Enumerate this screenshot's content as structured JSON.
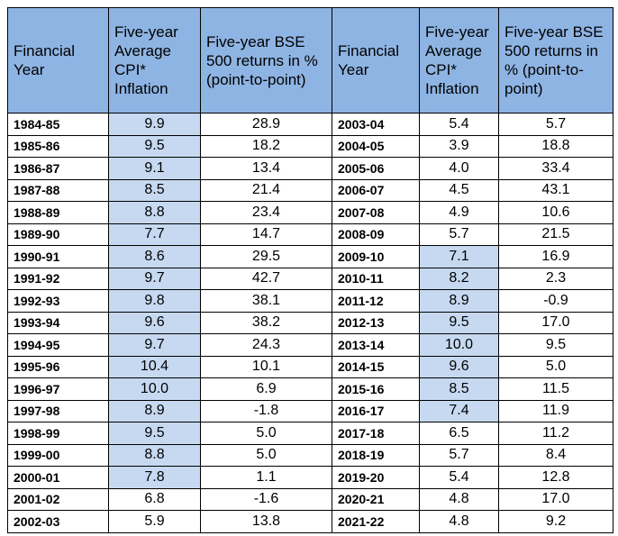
{
  "table": {
    "headers": [
      "Financial Year",
      "Five-year Average CPI* Inflation",
      "Five-year BSE 500 returns in % (point-to-point)",
      "Financial Year",
      "Five-year Average CPI* Inflation",
      "Five-year BSE 500 returns in % (point-to-point)"
    ],
    "header_color": "#8eb4e3",
    "highlight_color": "#c6d9f1",
    "highlighted": [
      [
        0,
        1
      ],
      [
        1,
        1
      ],
      [
        2,
        1
      ],
      [
        3,
        1
      ],
      [
        4,
        1
      ],
      [
        5,
        1
      ],
      [
        6,
        1
      ],
      [
        7,
        1
      ],
      [
        8,
        1
      ],
      [
        9,
        1
      ],
      [
        10,
        1
      ],
      [
        11,
        1
      ],
      [
        12,
        1
      ],
      [
        13,
        1
      ],
      [
        14,
        1
      ],
      [
        15,
        1
      ],
      [
        16,
        1
      ],
      [
        6,
        4
      ],
      [
        7,
        4
      ],
      [
        8,
        4
      ],
      [
        9,
        4
      ],
      [
        10,
        4
      ],
      [
        11,
        4
      ],
      [
        12,
        4
      ],
      [
        13,
        4
      ]
    ],
    "rows": [
      [
        "1984-85",
        "9.9",
        "28.9",
        "2003-04",
        "5.4",
        "5.7"
      ],
      [
        "1985-86",
        "9.5",
        "18.2",
        "2004-05",
        "3.9",
        "18.8"
      ],
      [
        "1986-87",
        "9.1",
        "13.4",
        "2005-06",
        "4.0",
        "33.4"
      ],
      [
        "1987-88",
        "8.5",
        "21.4",
        "2006-07",
        "4.5",
        "43.1"
      ],
      [
        "1988-89",
        "8.8",
        "23.4",
        "2007-08",
        "4.9",
        "10.6"
      ],
      [
        "1989-90",
        "7.7",
        "14.7",
        "2008-09",
        "5.7",
        "21.5"
      ],
      [
        "1990-91",
        "8.6",
        "29.5",
        "2009-10",
        "7.1",
        "16.9"
      ],
      [
        "1991-92",
        "9.7",
        "42.7",
        "2010-11",
        "8.2",
        "2.3"
      ],
      [
        "1992-93",
        "9.8",
        "38.1",
        "2011-12",
        "8.9",
        "-0.9"
      ],
      [
        "1993-94",
        "9.6",
        "38.2",
        "2012-13",
        "9.5",
        "17.0"
      ],
      [
        "1994-95",
        "9.7",
        "24.3",
        "2013-14",
        "10.0",
        "9.5"
      ],
      [
        "1995-96",
        "10.4",
        "10.1",
        "2014-15",
        "9.6",
        "5.0"
      ],
      [
        "1996-97",
        "10.0",
        "6.9",
        "2015-16",
        "8.5",
        "11.5"
      ],
      [
        "1997-98",
        "8.9",
        "-1.8",
        "2016-17",
        "7.4",
        "11.9"
      ],
      [
        "1998-99",
        "9.5",
        "5.0",
        "2017-18",
        "6.5",
        "11.2"
      ],
      [
        "1999-00",
        "8.8",
        "5.0",
        "2018-19",
        "5.7",
        "8.4"
      ],
      [
        "2000-01",
        "7.8",
        "1.1",
        "2019-20",
        "5.4",
        "12.8"
      ],
      [
        "2001-02",
        "6.8",
        "-1.6",
        "2020-21",
        "4.8",
        "17.0"
      ],
      [
        "2002-03",
        "5.9",
        "13.8",
        "2021-22",
        "4.8",
        "9.2"
      ]
    ]
  }
}
